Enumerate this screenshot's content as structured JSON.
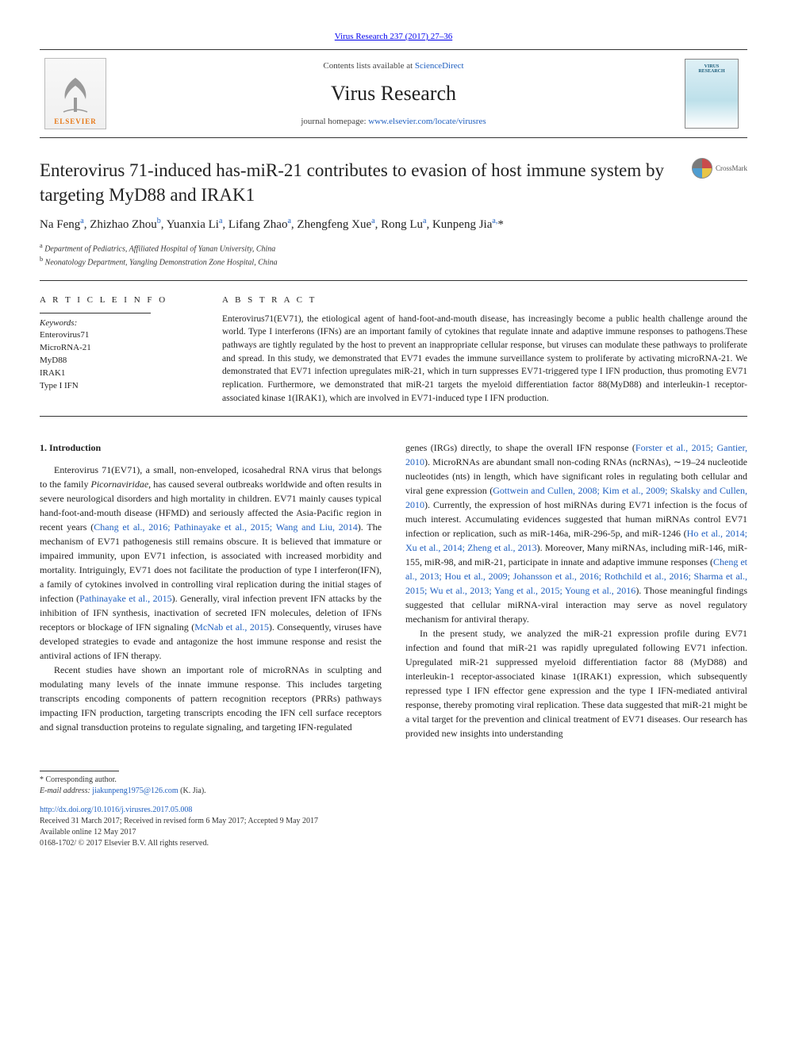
{
  "header_link": "Virus Research 237 (2017) 27–36",
  "masthead": {
    "contents_prefix": "Contents lists available at ",
    "contents_link": "ScienceDirect",
    "journal_name": "Virus Research",
    "homepage_prefix": "journal homepage: ",
    "homepage_link": "www.elsevier.com/locate/virusres",
    "publisher_name": "ELSEVIER",
    "cover_line1": "VIRUS",
    "cover_line2": "RESEARCH"
  },
  "article": {
    "title": "Enterovirus 71-induced has-miR-21 contributes to evasion of host immune system by targeting MyD88 and IRAK1",
    "crossmark_label": "CrossMark",
    "authors_html": "Na Feng<sup>a</sup>, Zhizhao Zhou<sup>b</sup>, Yuanxia Li<sup>a</sup>, Lifang Zhao<sup>a</sup>, Zhengfeng Xue<sup>a</sup>, Rong Lu<sup>a</sup>, Kunpeng Jia<sup>a,</sup>*",
    "affiliations": [
      {
        "sup": "a",
        "text": "Department of Pediatrics, Affiliated Hospital of Yanan University, China"
      },
      {
        "sup": "b",
        "text": "Neonatology Department, Yangling Demonstration Zone Hospital, China"
      }
    ]
  },
  "info": {
    "heading": "A R T I C L E  I N F O",
    "kw_label": "Keywords:",
    "keywords": [
      "Enterovirus71",
      "MicroRNA-21",
      "MyD88",
      "IRAK1",
      "Type I IFN"
    ]
  },
  "abstract": {
    "heading": "A B S T R A C T",
    "text": "Enterovirus71(EV71), the etiological agent of hand-foot-and-mouth disease, has increasingly become a public health challenge around the world. Type I interferons (IFNs) are an important family of cytokines that regulate innate and adaptive immune responses to pathogens.These pathways are tightly regulated by the host to prevent an inappropriate cellular response, but viruses can modulate these pathways to proliferate and spread. In this study, we demonstrated that EV71 evades the immune surveillance system to proliferate by activating microRNA-21. We demonstrated that EV71 infection upregulates miR-21, which in turn suppresses EV71-triggered type I IFN production, thus promoting EV71 replication. Furthermore, we demonstrated that miR-21 targets the myeloid differentiation factor 88(MyD88) and interleukin-1 receptor-associated kinase 1(IRAK1), which are involved in EV71-induced type I IFN production."
  },
  "body": {
    "intro_heading": "1. Introduction",
    "left_paragraphs": [
      "Enterovirus 71(EV71), a small, non-enveloped, icosahedral RNA virus that belongs to the family <span class=\"ital\">Picornaviridae</span>, has caused several outbreaks worldwide and often results in severe neurological disorders and high mortality in children. EV71 mainly causes typical hand-foot-and-mouth disease (HFMD) and seriously affected the Asia-Pacific region in recent years (<a href=\"#\">Chang et al., 2016; Pathinayake et al., 2015; Wang and Liu, 2014</a>). The mechanism of EV71 pathogenesis still remains obscure. It is believed that immature or impaired immunity, upon EV71 infection, is associated with increased morbidity and mortality. Intriguingly, EV71 does not facilitate the production of type I interferon(IFN), a family of cytokines involved in controlling viral replication during the initial stages of infection (<a href=\"#\">Pathinayake et al., 2015</a>). Generally, viral infection prevent IFN attacks by the inhibition of IFN synthesis, inactivation of secreted IFN molecules, deletion of IFNs receptors or blockage of IFN signaling (<a href=\"#\">McNab et al., 2015</a>). Consequently, viruses have developed strategies to evade and antagonize the host immune response and resist the antiviral actions of IFN therapy.",
      "Recent studies have shown an important role of microRNAs in sculpting and modulating many levels of the innate immune response. This includes targeting transcripts encoding components of pattern recognition receptors (PRRs) pathways impacting IFN production, targeting transcripts encoding the IFN cell surface receptors and signal transduction proteins to regulate signaling, and targeting IFN-regulated"
    ],
    "right_paragraphs": [
      "genes (IRGs) directly, to shape the overall IFN response (<a href=\"#\">Forster et al., 2015; Gantier, 2010</a>). MicroRNAs are abundant small non-coding RNAs (ncRNAs), ∼19–24 nucleotide nucleotides (nts) in length, which have significant roles in regulating both cellular and viral gene expression (<a href=\"#\">Gottwein and Cullen, 2008; Kim et al., 2009; Skalsky and Cullen, 2010</a>). Currently, the expression of host miRNAs during EV71 infection is the focus of much interest. Accumulating evidences suggested that human miRNAs control EV71 infection or replication, such as miR-146a, miR-296-5p, and miR-1246 (<a href=\"#\">Ho et al., 2014; Xu et al., 2014; Zheng et al., 2013</a>). Moreover, Many miRNAs, including miR-146, miR-155, miR-98, and miR-21, participate in innate and adaptive immune responses (<a href=\"#\">Cheng et al., 2013; Hou et al., 2009; Johansson et al., 2016; Rothchild et al., 2016; Sharma et al., 2015; Wu et al., 2013; Yang et al., 2015; Young et al., 2016</a>). Those meaningful findings suggested that cellular miRNA-viral interaction may serve as novel regulatory mechanism for antiviral therapy.",
      "In the present study, we analyzed the miR-21 expression profile during EV71 infection and found that miR-21 was rapidly upregulated following EV71 infection. Upregulated miR-21 suppressed myeloid differentiation factor 88 (MyD88) and interleukin-1 receptor-associated kinase 1(IRAK1) expression, which subsequently repressed type I IFN effector gene expression and the type I IFN-mediated antiviral response, thereby promoting viral replication. These data suggested that miR-21 might be a vital target for the prevention and clinical treatment of EV71 diseases. Our research has provided new insights into understanding"
    ]
  },
  "footer": {
    "corr": "* Corresponding author.",
    "email_label": "E-mail address: ",
    "email": "jiakunpeng1975@126.com",
    "email_suffix": " (K. Jia).",
    "doi": "http://dx.doi.org/10.1016/j.virusres.2017.05.008",
    "history": "Received 31 March 2017; Received in revised form 6 May 2017; Accepted 9 May 2017",
    "online": "Available online 12 May 2017",
    "issn": "0168-1702/ © 2017 Elsevier B.V. All rights reserved."
  },
  "colors": {
    "link": "#2060c0",
    "elsevier_orange": "#e67817",
    "rule": "#333333"
  }
}
